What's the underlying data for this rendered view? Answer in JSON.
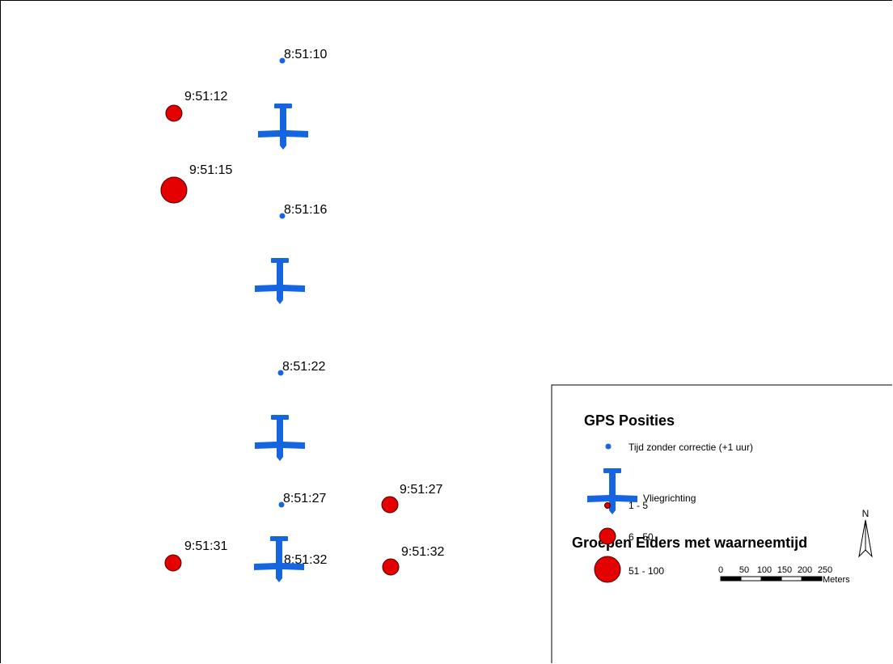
{
  "colors": {
    "gps": "#1565e0",
    "plane": "#1565e0",
    "eider": "#e50000",
    "eider_stroke": "#400000",
    "legend_border": "#000000"
  },
  "gps_points": [
    {
      "time": "8:51:10"
    },
    {
      "time": "8:51:16"
    },
    {
      "time": "8:51:22"
    },
    {
      "time": "8:51:27"
    },
    {
      "time": "8:51:32"
    }
  ],
  "planes": [
    {
      "icon": "plane-icon"
    },
    {
      "icon": "plane-icon"
    },
    {
      "icon": "plane-icon"
    },
    {
      "icon": "plane-icon"
    }
  ],
  "eider_groups": [
    {
      "time": "9:51:12",
      "size_class": "6 - 50"
    },
    {
      "time": "9:51:15",
      "size_class": "51 - 100"
    },
    {
      "time": "9:51:27",
      "size_class": "6 - 50"
    },
    {
      "time": "9:51:31",
      "size_class": "6 - 50"
    },
    {
      "time": "9:51:32",
      "size_class": "6 - 50"
    }
  ],
  "legend": {
    "gps_title": "GPS Posities",
    "gps_item": "Tijd zonder correctie (+1 uur)",
    "plane_item": "Vliegrichting",
    "groups_title": "Groepen Eiders met waarneemtijd",
    "classes": [
      "1 - 5",
      "6 - 50",
      "51 - 100"
    ]
  },
  "north_arrow": {
    "label": "N"
  },
  "scalebar": {
    "ticks": [
      "0",
      "50",
      "100",
      "150",
      "200",
      "250"
    ],
    "unit": "Meters"
  }
}
